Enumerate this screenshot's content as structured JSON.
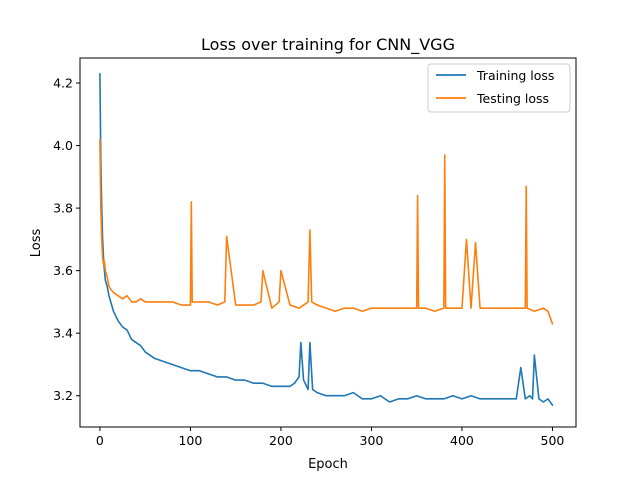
{
  "chart_data": {
    "type": "line",
    "title": "Loss over training for CNN_VGG",
    "xlabel": "Epoch",
    "ylabel": "Loss",
    "xlim": [
      -22,
      526
    ],
    "ylim": [
      3.1,
      4.28
    ],
    "xticks": [
      0,
      100,
      200,
      300,
      400,
      500
    ],
    "yticks": [
      3.2,
      3.4,
      3.6,
      3.8,
      4.0,
      4.2
    ],
    "ytick_labels": [
      "3.2",
      "3.4",
      "3.6",
      "3.8",
      "4.0",
      "4.2"
    ],
    "grid": false,
    "legend_position": "upper right",
    "series": [
      {
        "name": "Training loss",
        "color": "#1f77b4",
        "x": [
          0,
          1,
          2,
          3,
          4,
          5,
          6,
          8,
          10,
          12,
          15,
          20,
          25,
          30,
          35,
          40,
          45,
          50,
          60,
          70,
          80,
          90,
          100,
          110,
          120,
          130,
          140,
          150,
          160,
          170,
          180,
          190,
          200,
          210,
          215,
          220,
          222,
          225,
          230,
          232,
          235,
          240,
          250,
          260,
          270,
          280,
          290,
          300,
          310,
          320,
          330,
          340,
          350,
          360,
          370,
          380,
          390,
          400,
          410,
          420,
          430,
          440,
          450,
          460,
          465,
          470,
          475,
          478,
          480,
          485,
          490,
          495,
          500
        ],
        "y": [
          4.23,
          3.95,
          3.8,
          3.7,
          3.64,
          3.6,
          3.57,
          3.55,
          3.52,
          3.5,
          3.47,
          3.44,
          3.42,
          3.41,
          3.38,
          3.37,
          3.36,
          3.34,
          3.32,
          3.31,
          3.3,
          3.29,
          3.28,
          3.28,
          3.27,
          3.26,
          3.26,
          3.25,
          3.25,
          3.24,
          3.24,
          3.23,
          3.23,
          3.23,
          3.24,
          3.26,
          3.37,
          3.25,
          3.22,
          3.37,
          3.22,
          3.21,
          3.2,
          3.2,
          3.2,
          3.21,
          3.19,
          3.19,
          3.2,
          3.18,
          3.19,
          3.19,
          3.2,
          3.19,
          3.19,
          3.19,
          3.2,
          3.19,
          3.2,
          3.19,
          3.19,
          3.19,
          3.19,
          3.19,
          3.29,
          3.19,
          3.2,
          3.19,
          3.33,
          3.19,
          3.18,
          3.19,
          3.17
        ]
      },
      {
        "name": "Testing loss",
        "color": "#ff7f0e",
        "x": [
          0,
          1,
          2,
          3,
          4,
          5,
          6,
          8,
          10,
          12,
          15,
          20,
          25,
          30,
          35,
          40,
          45,
          50,
          60,
          70,
          80,
          90,
          100,
          101,
          102,
          110,
          120,
          130,
          138,
          140,
          150,
          160,
          170,
          178,
          180,
          190,
          198,
          200,
          210,
          220,
          230,
          232,
          234,
          240,
          250,
          260,
          270,
          280,
          290,
          300,
          310,
          320,
          330,
          340,
          350,
          351,
          352,
          360,
          370,
          380,
          381,
          382,
          390,
          400,
          405,
          410,
          415,
          420,
          430,
          440,
          450,
          460,
          470,
          471,
          472,
          480,
          490,
          495,
          500
        ],
        "y": [
          4.02,
          3.8,
          3.7,
          3.64,
          3.62,
          3.63,
          3.6,
          3.58,
          3.55,
          3.54,
          3.53,
          3.52,
          3.51,
          3.52,
          3.5,
          3.5,
          3.51,
          3.5,
          3.5,
          3.5,
          3.5,
          3.49,
          3.49,
          3.82,
          3.5,
          3.5,
          3.5,
          3.49,
          3.5,
          3.71,
          3.49,
          3.49,
          3.49,
          3.5,
          3.6,
          3.48,
          3.5,
          3.6,
          3.49,
          3.48,
          3.5,
          3.73,
          3.5,
          3.49,
          3.48,
          3.47,
          3.48,
          3.48,
          3.47,
          3.48,
          3.48,
          3.48,
          3.48,
          3.48,
          3.48,
          3.84,
          3.48,
          3.48,
          3.47,
          3.48,
          3.97,
          3.48,
          3.48,
          3.48,
          3.7,
          3.48,
          3.69,
          3.48,
          3.48,
          3.48,
          3.48,
          3.48,
          3.48,
          3.87,
          3.48,
          3.47,
          3.48,
          3.47,
          3.43
        ]
      }
    ]
  }
}
